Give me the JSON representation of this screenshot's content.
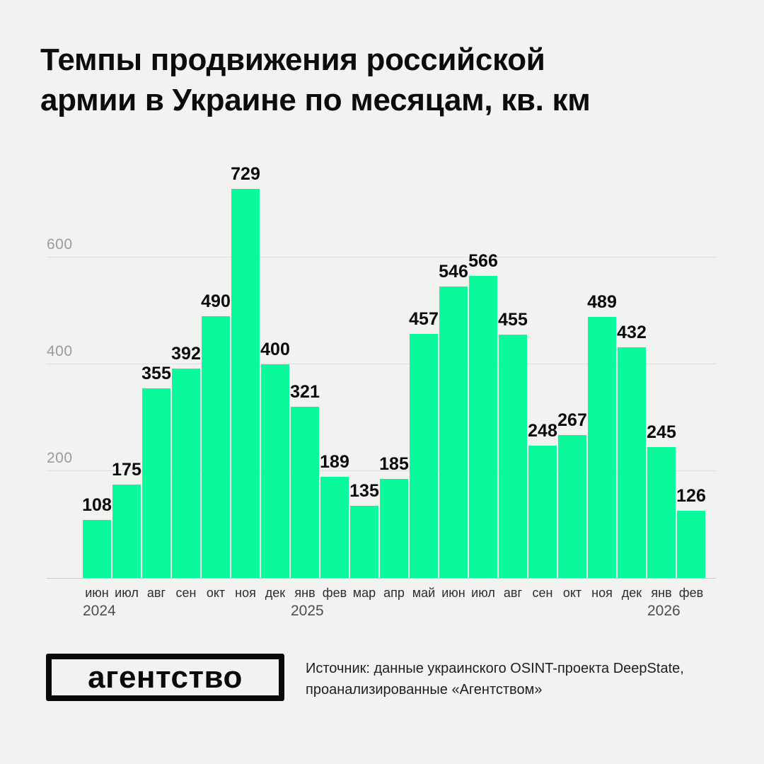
{
  "title": {
    "line1": "Темпы продвижения российской",
    "line2": "армии в Украине по месяцам, кв. км"
  },
  "colors": {
    "background": "#F2F2F1",
    "bar": "#0AFA9B",
    "gridline": "#DEDEDC",
    "axis": "#C9C9C7"
  },
  "chart_data": {
    "type": "bar",
    "title": "Темпы продвижения российской армии в Украине по месяцам, кв. км",
    "unit": "кв. км",
    "categories": [
      "июн",
      "июл",
      "авг",
      "сен",
      "окт",
      "ноя",
      "дек",
      "янв",
      "фев",
      "мар",
      "апр",
      "май",
      "июн",
      "июл",
      "авг",
      "сен",
      "окт",
      "ноя",
      "дек",
      "янв",
      "фев"
    ],
    "values": [
      108,
      175,
      355,
      392,
      490,
      729,
      400,
      321,
      189,
      135,
      185,
      457,
      546,
      566,
      455,
      248,
      267,
      489,
      432,
      245,
      126
    ],
    "year_markers": [
      {
        "label": "2024",
        "index": 0
      },
      {
        "label": "2025",
        "index": 7
      },
      {
        "label": "2026",
        "index": 19
      }
    ],
    "yticks": [
      200,
      400,
      600
    ],
    "ylim": [
      0,
      735
    ],
    "grid": true,
    "legend": false,
    "xlabel": "",
    "ylabel": ""
  },
  "footer": {
    "logo_text": "агентство",
    "source_line1": "Источник: данные украинского OSINT-проекта DeepState,",
    "source_line2": "проанализированные «Агентством»"
  }
}
